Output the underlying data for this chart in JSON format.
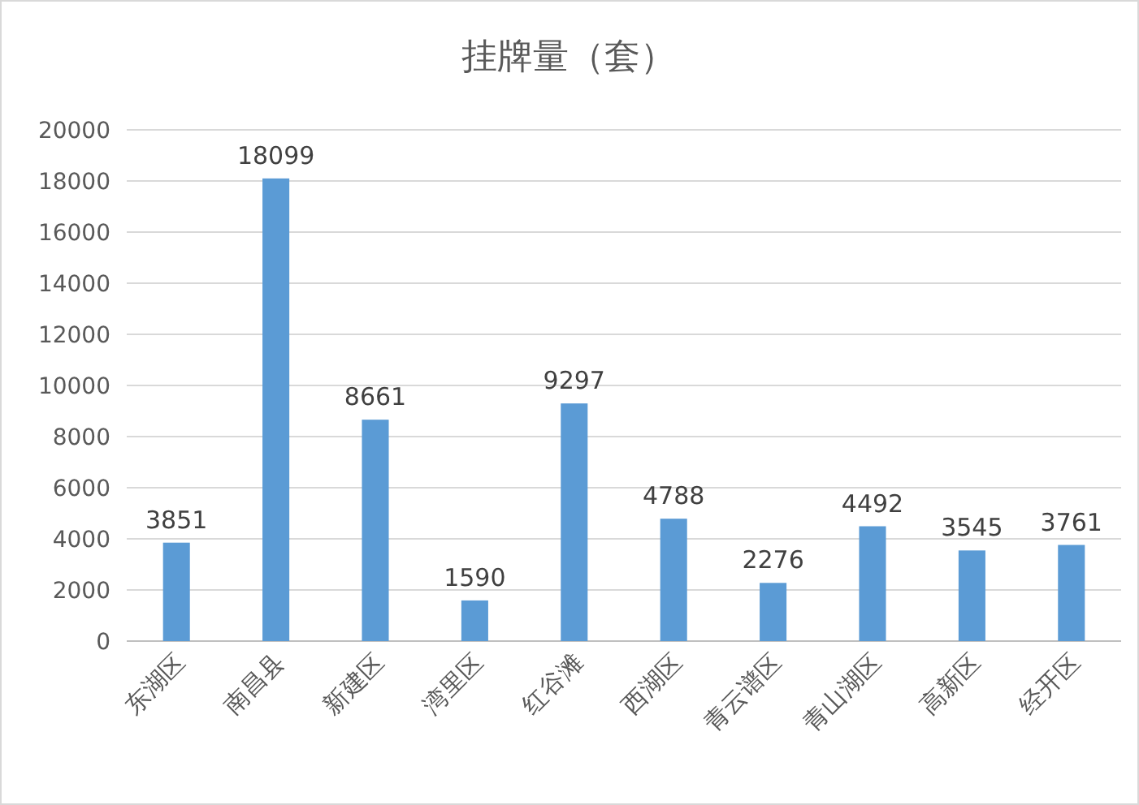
{
  "chart_data": {
    "type": "bar",
    "title": "挂牌量（套）",
    "categories": [
      "东湖区",
      "南昌县",
      "新建区",
      "湾里区",
      "红谷滩",
      "西湖区",
      "青云谱区",
      "青山湖区",
      "高新区",
      "经开区"
    ],
    "values": [
      3851,
      18099,
      8661,
      1590,
      9297,
      4788,
      2276,
      4492,
      3545,
      3761
    ],
    "color": "#5b9bd5",
    "ylim": [
      0,
      20000
    ],
    "yticks": [
      0,
      2000,
      4000,
      6000,
      8000,
      10000,
      12000,
      14000,
      16000,
      18000,
      20000
    ],
    "grid": "y",
    "data_labels": true
  }
}
